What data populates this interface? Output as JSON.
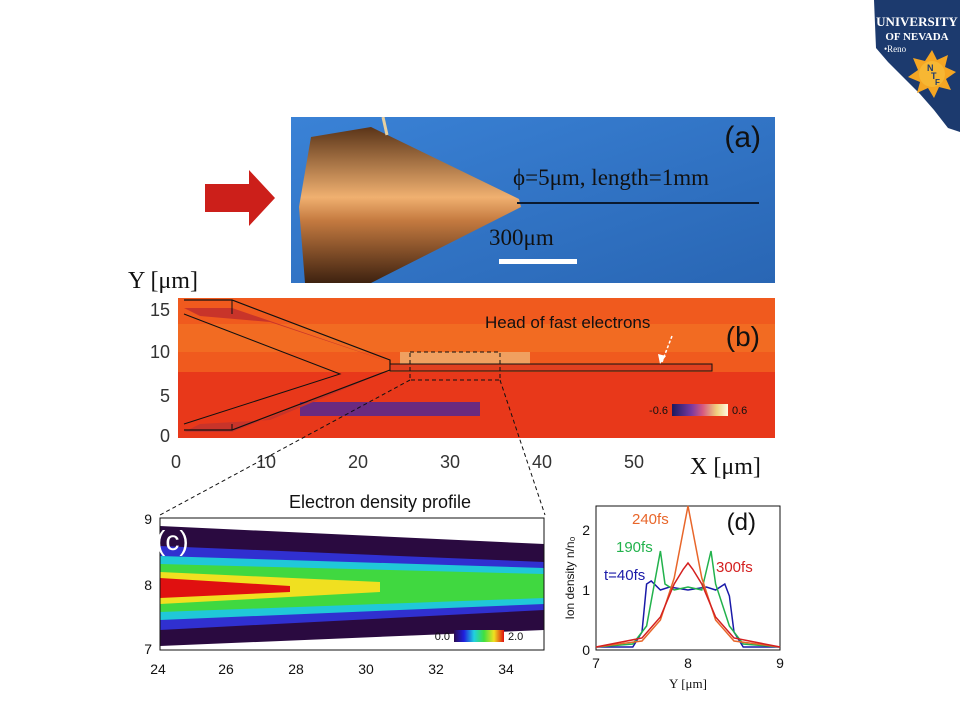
{
  "logo": {
    "line1": "UNIVERSITY",
    "line2": "OF NEVADA",
    "line3": "•Reno",
    "seal_letters": [
      "N",
      "T",
      "F"
    ]
  },
  "colors": {
    "logo_blue": "#1c3a6e",
    "arrow_red": "#cc1f1a",
    "photo_bg": "#2f76c9",
    "head_arrow": "#ffffff"
  },
  "panel_a": {
    "label": "(a)",
    "wire_label": "ϕ=5μm, length=1mm",
    "scale_label": "300μm"
  },
  "panel_b": {
    "label": "(b)",
    "y_axis_label": "Y [μm]",
    "x_axis_label": "X [μm]",
    "annotation": "Head of fast electrons",
    "colorbar_min": "-0.6",
    "colorbar_max": "0.6",
    "x_ticks": [
      "0",
      "10",
      "20",
      "30",
      "40",
      "50"
    ],
    "y_ticks": [
      "15",
      "10",
      "5",
      "0"
    ]
  },
  "panel_c": {
    "label": "(c)",
    "title": "Electron density profile",
    "colorbar_min": "0.0",
    "colorbar_max": "2.0",
    "x_ticks": [
      "24",
      "26",
      "28",
      "30",
      "32",
      "34"
    ],
    "y_ticks": [
      "9",
      "8",
      "7"
    ]
  },
  "chart_data": [
    {
      "type": "line",
      "panel": "(d)",
      "xlabel": "Y [μm]",
      "ylabel": "Ion density n/n₀",
      "xlim": [
        7,
        9
      ],
      "ylim": [
        0,
        2.4
      ],
      "x_ticks": [
        "7",
        "8",
        "9"
      ],
      "y_ticks": [
        "0",
        "1",
        "2"
      ],
      "series": [
        {
          "name": "t=40fs",
          "color": "#1a1aa8",
          "x": [
            7.0,
            7.4,
            7.5,
            7.55,
            7.6,
            7.7,
            7.8,
            8.0,
            8.2,
            8.3,
            8.4,
            8.45,
            8.5,
            8.6,
            9.0
          ],
          "y": [
            0.05,
            0.05,
            0.3,
            1.1,
            1.15,
            1.0,
            1.05,
            1.0,
            1.05,
            1.0,
            1.1,
            0.9,
            0.3,
            0.05,
            0.05
          ]
        },
        {
          "name": "190fs",
          "color": "#22b24c",
          "x": [
            7.0,
            7.4,
            7.55,
            7.7,
            7.75,
            7.85,
            8.0,
            8.15,
            8.25,
            8.3,
            8.45,
            8.6,
            9.0
          ],
          "y": [
            0.05,
            0.1,
            0.4,
            1.65,
            1.1,
            1.0,
            1.05,
            1.0,
            1.65,
            1.1,
            0.4,
            0.1,
            0.05
          ]
        },
        {
          "name": "240fs",
          "color": "#e8662a",
          "x": [
            7.0,
            7.5,
            7.7,
            7.85,
            7.95,
            8.0,
            8.05,
            8.15,
            8.3,
            8.5,
            9.0
          ],
          "y": [
            0.05,
            0.15,
            0.5,
            1.2,
            2.0,
            2.4,
            2.0,
            1.2,
            0.5,
            0.15,
            0.05
          ]
        },
        {
          "name": "300fs",
          "color": "#d42020",
          "x": [
            7.0,
            7.5,
            7.7,
            7.85,
            7.95,
            8.0,
            8.05,
            8.15,
            8.3,
            8.5,
            9.0
          ],
          "y": [
            0.05,
            0.2,
            0.55,
            1.1,
            1.35,
            1.45,
            1.35,
            1.1,
            0.55,
            0.2,
            0.05
          ]
        }
      ],
      "label": "(d)"
    }
  ]
}
